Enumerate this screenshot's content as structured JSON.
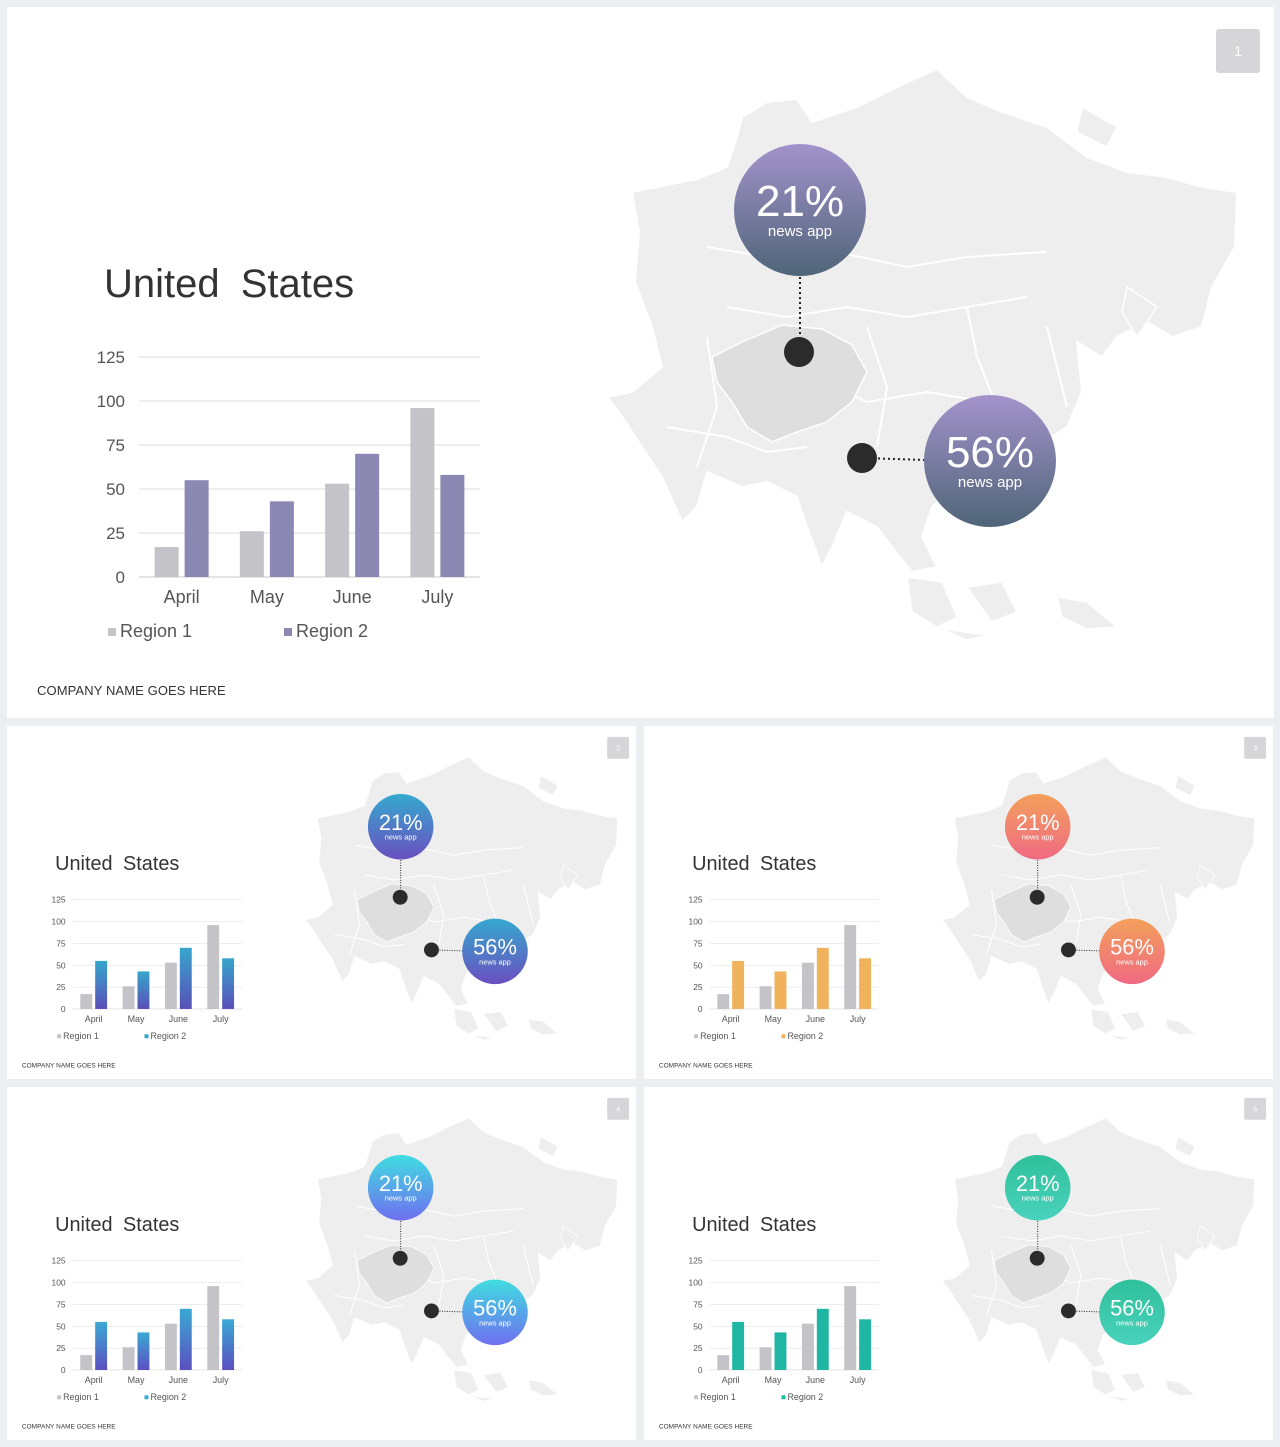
{
  "slides": [
    {
      "number": "1",
      "title": "United  States",
      "footer": "COMPANY NAME GOES HERE",
      "theme": {
        "bar2": "#8c88b4",
        "bubble_top": "#a393cc",
        "bubble_bottom": "#4f6578"
      }
    },
    {
      "number": "2",
      "title": "United  States",
      "footer": "COMPANY NAME GOES HERE",
      "theme": {
        "bar2_top": "#35a6cc",
        "bar2_bottom": "#5a4fb8",
        "bubble_top": "#35a9cf",
        "bubble_bottom": "#6a4fbf"
      }
    },
    {
      "number": "3",
      "title": "United  States",
      "footer": "COMPANY NAME GOES HERE",
      "theme": {
        "bar2": "#f0b35c",
        "bubble_top": "#f3a05b",
        "bubble_bottom": "#f06a82"
      }
    },
    {
      "number": "4",
      "title": "United  States",
      "footer": "COMPANY NAME GOES HERE",
      "theme": {
        "bar2_top": "#3aa9d4",
        "bar2_bottom": "#5b4fc0",
        "bubble_top": "#3fdde0",
        "bubble_bottom": "#6f6ff0"
      }
    },
    {
      "number": "5",
      "title": "United  States",
      "footer": "COMPANY NAME GOES HERE",
      "theme": {
        "bar2": "#1fb7a3",
        "bubble_top": "#2fc09a",
        "bubble_bottom": "#49d2bd"
      }
    }
  ],
  "callouts": [
    {
      "value": "21%",
      "label": "news app"
    },
    {
      "value": "56%",
      "label": "news app"
    }
  ],
  "chart_data": {
    "type": "bar",
    "categories": [
      "April",
      "May",
      "June",
      "July"
    ],
    "series": [
      {
        "name": "Region 1",
        "values": [
          17,
          26,
          53,
          96
        ]
      },
      {
        "name": "Region 2",
        "values": [
          55,
          43,
          70,
          58
        ]
      }
    ],
    "yticks": [
      0,
      25,
      50,
      75,
      100,
      125
    ],
    "ylim": [
      0,
      125
    ],
    "grid": true,
    "legend": "bottom",
    "colors": {
      "region1": "#c4c3c8"
    }
  }
}
